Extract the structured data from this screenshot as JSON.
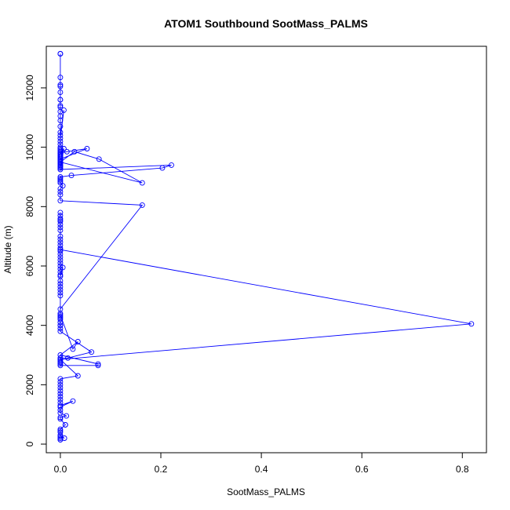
{
  "chart_data": {
    "type": "line",
    "title": "ATOM1 Southbound SootMass_PALMS",
    "xlabel": "SootMass_PALMS",
    "ylabel": "Altitude (m)",
    "xlim": [
      -0.028,
      0.848
    ],
    "ylim": [
      -290,
      13400
    ],
    "x_ticks": [
      0.0,
      0.2,
      0.4,
      0.6,
      0.8
    ],
    "x_tick_labels": [
      "0.0",
      "0.2",
      "0.4",
      "0.6",
      "0.8"
    ],
    "y_ticks": [
      0,
      2000,
      4000,
      6000,
      8000,
      10000,
      12000
    ],
    "y_tick_labels": [
      "0",
      "2000",
      "4000",
      "6000",
      "8000",
      "10000",
      "12000"
    ],
    "grid": false,
    "legend": "none",
    "marker": "open-circle",
    "color": "#0000ff",
    "series": [
      {
        "x": [
          0.0,
          0.0,
          0.0,
          0.0,
          0.0,
          0.0,
          0.0,
          0.0,
          0.0,
          0.0,
          0.0,
          0.0,
          0.0,
          0.0,
          0.0,
          0.0,
          0.007,
          0.0,
          0.0,
          0.0,
          0.0,
          0.0,
          0.0,
          0.0,
          0.0,
          0.0,
          0.0,
          0.0,
          0.0,
          0.0,
          0.0,
          0.0,
          0.0,
          0.0,
          0.0,
          0.007,
          0.0,
          0.0,
          0.0,
          0.0,
          0.0,
          0.053,
          0.013,
          0.0,
          0.0,
          0.0,
          0.0,
          0.0,
          0.0,
          0.0,
          0.028,
          0.077,
          0.163,
          0.0,
          0.0,
          0.0,
          0.0,
          0.0,
          0.0,
          0.221,
          0.203,
          0.022,
          0.0,
          0.0,
          0.0,
          0.0,
          0.0,
          0.005,
          0.0,
          0.0,
          0.0,
          0.0,
          0.163,
          0.0,
          0.0,
          0.0,
          0.0,
          0.0,
          0.0,
          0.0,
          0.0,
          0.0,
          0.0,
          0.0,
          0.0,
          0.0,
          0.0,
          0.0,
          0.0,
          0.0,
          0.0,
          0.0,
          0.0,
          0.0,
          0.0,
          0.0,
          0.0,
          0.0,
          0.0,
          0.0,
          0.005,
          0.0,
          0.0,
          0.0,
          0.0,
          0.0,
          0.0,
          0.0,
          0.0,
          0.818,
          0.0,
          0.0,
          0.0,
          0.0,
          0.0,
          0.075,
          0.075,
          0.0,
          0.035,
          0.025,
          0.0,
          0.0,
          0.0,
          0.0,
          0.0,
          0.0,
          0.0,
          0.062,
          0.015,
          0.0,
          0.0,
          0.035,
          0.0,
          0.0,
          0.0,
          0.0,
          0.0,
          0.0,
          0.0,
          0.0,
          0.0,
          0.0,
          0.025,
          0.0,
          0.0,
          0.0,
          0.012,
          0.0,
          0.0,
          0.01,
          0.01,
          0.0,
          0.0,
          0.0,
          0.0,
          0.008,
          0.0,
          0.0,
          0.0,
          0.0
        ],
        "y": [
          13150,
          13150,
          12350,
          12100,
          12050,
          11850,
          11600,
          11600,
          11400,
          11350,
          11200,
          11050,
          10900,
          10700,
          10500,
          10400,
          11250,
          10300,
          10200,
          10100,
          10000,
          9950,
          9900,
          9850,
          9800,
          9750,
          9700,
          9650,
          9600,
          9550,
          9500,
          9450,
          9400,
          9350,
          9300,
          9950,
          9800,
          9750,
          9700,
          9650,
          9600,
          9950,
          9850,
          9800,
          9750,
          9700,
          9650,
          9600,
          9550,
          9500,
          9850,
          9600,
          8800,
          9500,
          9450,
          9400,
          9350,
          9300,
          9250,
          9400,
          9300,
          9050,
          9000,
          8950,
          8900,
          8850,
          8800,
          8700,
          8600,
          8500,
          8400,
          8200,
          8050,
          4550,
          4400,
          4250,
          4100,
          4000,
          7800,
          7700,
          7600,
          7550,
          7500,
          7400,
          7300,
          7200,
          7000,
          6900,
          6800,
          6700,
          6600,
          6500,
          6400,
          6300,
          6200,
          6100,
          6000,
          5900,
          5800,
          5700,
          5950,
          5650,
          5500,
          5400,
          5300,
          5200,
          5100,
          5000,
          6550,
          4050,
          2850,
          2800,
          2750,
          2700,
          2650,
          2650,
          2700,
          3000,
          3450,
          3200,
          4350,
          4300,
          4200,
          4100,
          4000,
          3900,
          3800,
          3100,
          2900,
          2900,
          2850,
          2300,
          2200,
          2100,
          2000,
          1900,
          1800,
          1700,
          1600,
          1500,
          1400,
          1300,
          1450,
          1250,
          1150,
          1050,
          950,
          900,
          850,
          650,
          650,
          500,
          450,
          400,
          300,
          200,
          250,
          200,
          150,
          150
        ]
      }
    ]
  }
}
